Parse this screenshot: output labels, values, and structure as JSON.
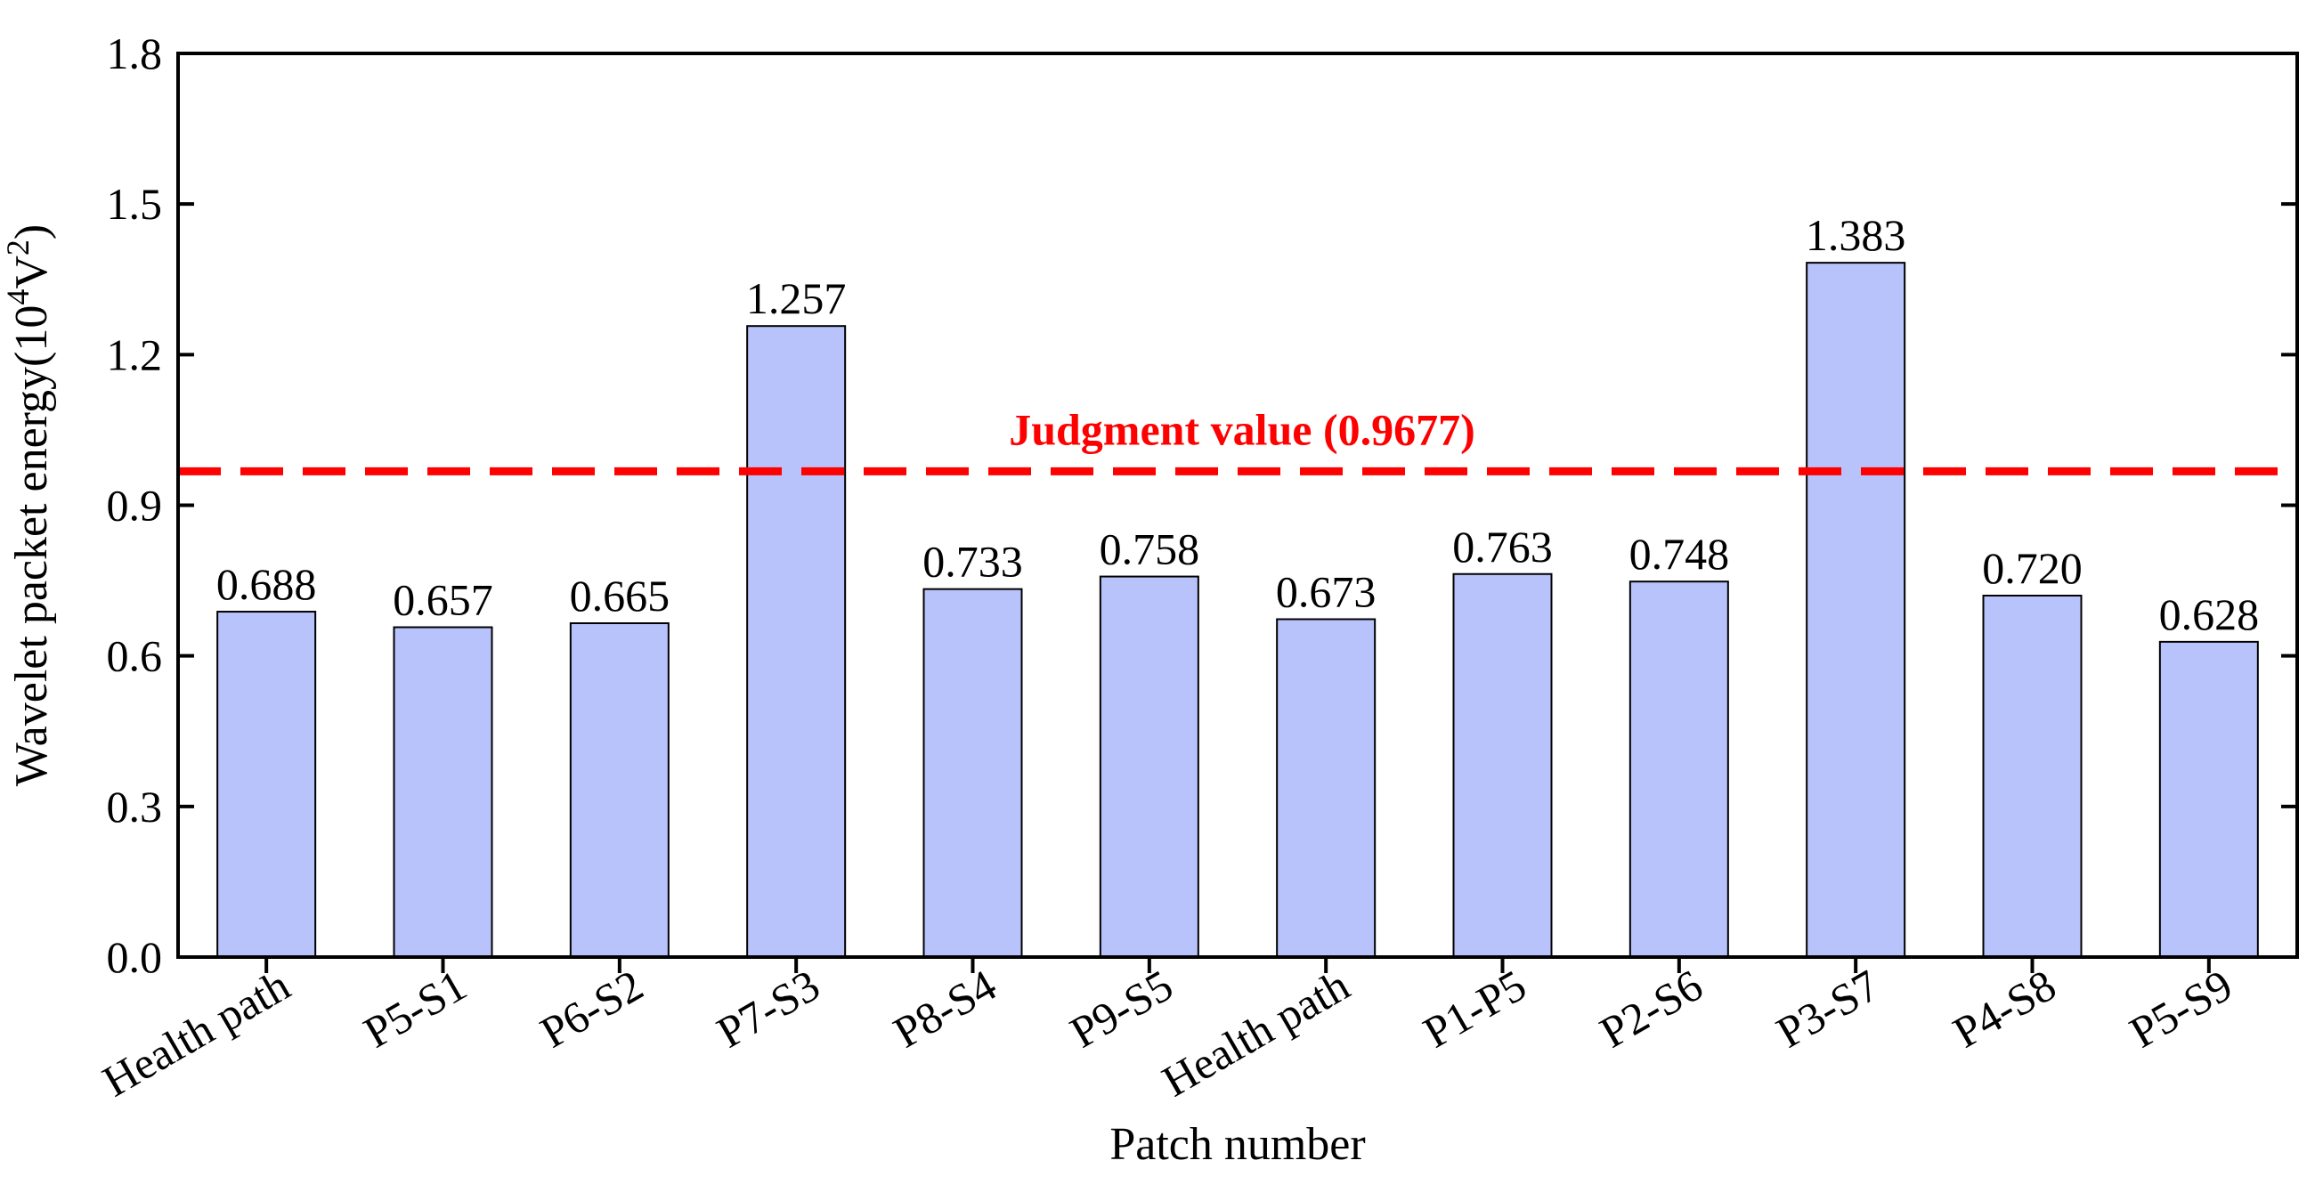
{
  "chart_data": {
    "type": "bar",
    "categories": [
      "Health path",
      "P5-S1",
      "P6-S2",
      "P7-S3",
      "P8-S4",
      "P9-S5",
      "Health path",
      "P1-P5",
      "P2-S6",
      "P3-S7",
      "P4-S8",
      "P5-S9"
    ],
    "values": [
      0.688,
      0.657,
      0.665,
      1.257,
      0.733,
      0.758,
      0.673,
      0.763,
      0.748,
      1.383,
      0.72,
      0.628
    ],
    "value_labels": [
      "0.688",
      "0.657",
      "0.665",
      "1.257",
      "0.733",
      "0.758",
      "0.673",
      "0.763",
      "0.748",
      "1.383",
      "0.720",
      "0.628"
    ],
    "xlabel": "Patch number",
    "ylabel": "Wavelet packet energy(10",
    "ylabel_sup1": "4",
    "ylabel_mid": "V",
    "ylabel_sup2": "2",
    "ylabel_end": ")",
    "ylim": [
      0,
      1.8
    ],
    "yticks": [
      "0.0",
      "0.3",
      "0.6",
      "0.9",
      "1.2",
      "1.5",
      "1.8"
    ],
    "ytick_values": [
      0,
      0.3,
      0.6,
      0.9,
      1.2,
      1.5,
      1.8
    ],
    "threshold": {
      "value": 0.9677,
      "label": "Judgment value (0.9677)",
      "color": "#ff0000",
      "style": "dashed"
    },
    "bar_color": "#b8c2fb",
    "bar_edge_color": "#000000",
    "grid": false
  }
}
